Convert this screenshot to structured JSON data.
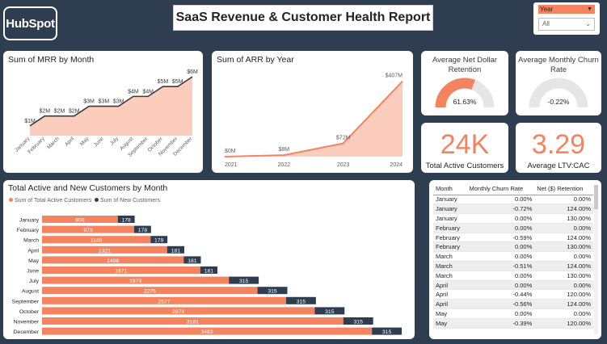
{
  "header": {
    "title": "SaaS Revenue & Customer Health Report",
    "logo_text": "HubSpot"
  },
  "slicer": {
    "label": "Year",
    "selected": "All"
  },
  "colors": {
    "accent": "#f4845f",
    "dark": "#2e3e50",
    "area": "#fbc4b1",
    "gauge_bg": "#e6e6e6"
  },
  "kpis": {
    "ndr": {
      "title": "Average Net Dollar Retention",
      "value": "61.63%",
      "fraction": 0.6163
    },
    "churn": {
      "title": "Average Monthly Churn Rate",
      "value": "-0.22%",
      "fraction": 0.0
    },
    "active": {
      "value": "24K",
      "label": "Total Active Customers"
    },
    "ltv": {
      "value": "3.29",
      "label": "Average LTV:CAC"
    }
  },
  "chart_data": [
    {
      "type": "area",
      "title": "Sum of MRR by Month",
      "categories": [
        "January",
        "February",
        "March",
        "April",
        "May",
        "June",
        "July",
        "August",
        "September",
        "October",
        "November",
        "December"
      ],
      "values": [
        1,
        2,
        2,
        2,
        3,
        3,
        3,
        4,
        4,
        5,
        5,
        6
      ],
      "labels": [
        "$1M",
        "$2M",
        "$2M",
        "$2M",
        "$3M",
        "$3M",
        "$3M",
        "$4M",
        "$4M",
        "$5M",
        "$5M",
        "$6M"
      ],
      "ylim": [
        0,
        6.5
      ]
    },
    {
      "type": "area",
      "title": "Sum of ARR by Year",
      "categories": [
        "2021",
        "2022",
        "2023",
        "2024"
      ],
      "values": [
        0,
        8,
        72,
        407
      ],
      "labels": [
        "$0M",
        "$8M",
        "$72M",
        "$407M"
      ],
      "ylim": [
        0,
        440
      ]
    },
    {
      "type": "bar",
      "title": "Total Active and New Customers by Month",
      "categories": [
        "January",
        "February",
        "March",
        "April",
        "May",
        "June",
        "July",
        "August",
        "September",
        "October",
        "November",
        "December"
      ],
      "series": [
        {
          "name": "Sum of Total Active Customers",
          "color": "#f4845f",
          "values": [
            800,
            973,
            1146,
            1321,
            1496,
            1671,
            1973,
            2275,
            2577,
            2879,
            3181,
            3483
          ]
        },
        {
          "name": "Sum of New Customers",
          "color": "#2e3e50",
          "values": [
            178,
            178,
            178,
            181,
            181,
            181,
            315,
            315,
            315,
            315,
            315,
            315
          ]
        }
      ],
      "stacked": true,
      "orientation": "horizontal",
      "xlim": [
        0,
        3900
      ],
      "legend": "top-left"
    }
  ],
  "table": {
    "columns": [
      "Month",
      "Monthly Churn Rate",
      "Net ($) Retention"
    ],
    "rows": [
      [
        "January",
        "0.00%",
        "0.00%"
      ],
      [
        "January",
        "-0.72%",
        "124.00%"
      ],
      [
        "January",
        "0.00%",
        "130.00%"
      ],
      [
        "February",
        "0.00%",
        "0.00%"
      ],
      [
        "February",
        "-0.59%",
        "124.00%"
      ],
      [
        "February",
        "0.00%",
        "130.00%"
      ],
      [
        "March",
        "0.00%",
        "0.00%"
      ],
      [
        "March",
        "-0.51%",
        "124.00%"
      ],
      [
        "March",
        "0.00%",
        "130.00%"
      ],
      [
        "April",
        "0.00%",
        "0.00%"
      ],
      [
        "April",
        "-0.44%",
        "120.00%"
      ],
      [
        "April",
        "-0.56%",
        "124.00%"
      ],
      [
        "May",
        "0.00%",
        "0.00%"
      ],
      [
        "May",
        "-0.39%",
        "120.00%"
      ]
    ]
  }
}
